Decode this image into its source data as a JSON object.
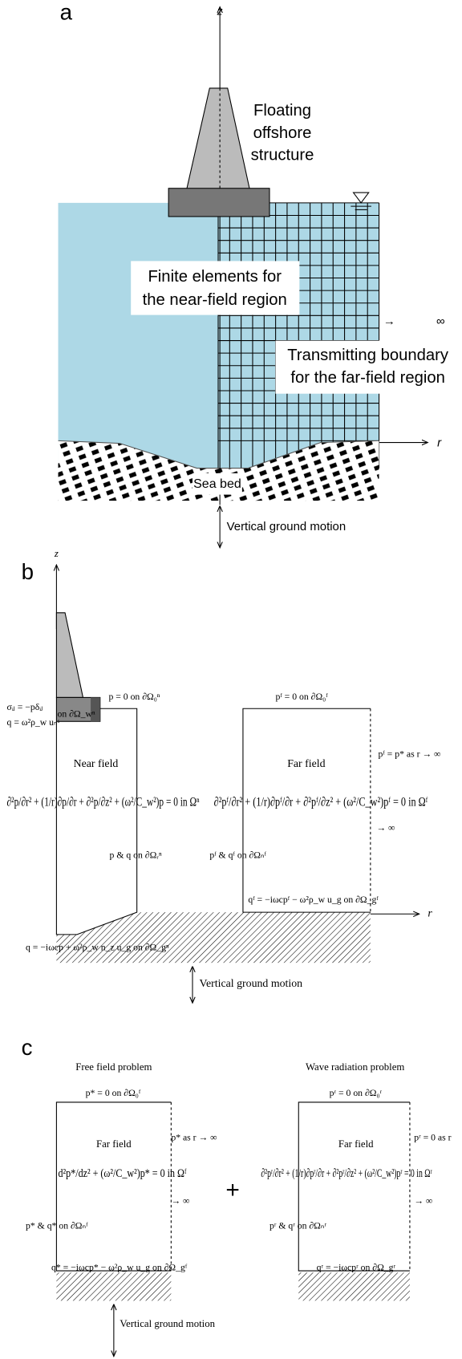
{
  "panel_a": {
    "label": "a",
    "z_axis": "z",
    "structure": [
      "Floating",
      "offshore",
      "structure"
    ],
    "near_field": [
      "Finite elements for",
      "the near-field region"
    ],
    "far_field": [
      "Transmitting boundary",
      "for the far-field region"
    ],
    "infinity": "→ ∞",
    "r_axis": "r",
    "seabed": "Sea bed",
    "ground_motion": "Vertical ground motion"
  },
  "panel_b": {
    "label": "b",
    "z_axis": "z",
    "top_near": "p = 0 on ∂Ω₀ⁿ",
    "stress": "σᵢⱼ = −pδᵢⱼ",
    "flux": "q = ω²ρ_w uₙˢ",
    "on_wall": "on ∂Ω_wⁿ",
    "near_field": "Near field",
    "near_equation": "∂²p/∂r² + (1/r)∂p/∂r + ∂²p/∂z² + (ω²/C_w²)p = 0 in Ωⁿ",
    "near_interface": "p & q on ∂Ωᵣⁿ",
    "near_bottom": "q = −iωcp + ω²ρ_w n_z u_g on ∂Ω_gⁿ",
    "top_far": "pᶠ = 0 on ∂Ω₀ᶠ",
    "far_field": "Far field",
    "far_condition": "pᶠ = p* as r → ∞",
    "far_equation": "∂²pᶠ/∂r² + (1/r)∂pᶠ/∂r + ∂²pᶠ/∂z² + (ω²/C_w²)pᶠ = 0 in Ωᶠ",
    "infinity": "→ ∞",
    "far_interface": "pᶠ & qᶠ on ∂Ωₙᶠ",
    "far_bottom": "qᶠ = −iωcpᶠ − ω²ρ_w u_g on ∂Ω_gᶠ",
    "r_axis": "r",
    "ground_motion": "Vertical ground motion"
  },
  "panel_c": {
    "label": "c",
    "plus": "+",
    "free": {
      "title": "Free field problem",
      "top": "p* = 0 on ∂Ω₀ᶠ",
      "far_field": "Far field",
      "condition": "p* as r → ∞",
      "equation": "d²p*/dz² + (ω²/C_w²)p* = 0 in Ωᶠ",
      "infinity": "→ ∞",
      "interface": "p* & q* on ∂Ωₙᶠ",
      "bottom": "q* = −iωcp* − ω²ρ_w u_g on ∂Ω_gᶠ",
      "ground_motion": "Vertical ground motion"
    },
    "radiation": {
      "title": "Wave radiation problem",
      "top": "pʳ = 0 on ∂Ω₀ʳ",
      "far_field": "Far field",
      "condition": "pʳ = 0 as r",
      "equation": "∂²pʳ/∂r² + (1/r)∂pʳ/∂r + ∂²pʳ/∂z² + (ω²/C_w²)pʳ = 0 in Ωʳ",
      "infinity": "→ ∞",
      "interface": "pʳ & qʳ on ∂Ωₙʳ",
      "bottom": "qʳ = −iωcpʳ on ∂Ω_gʳ"
    }
  }
}
